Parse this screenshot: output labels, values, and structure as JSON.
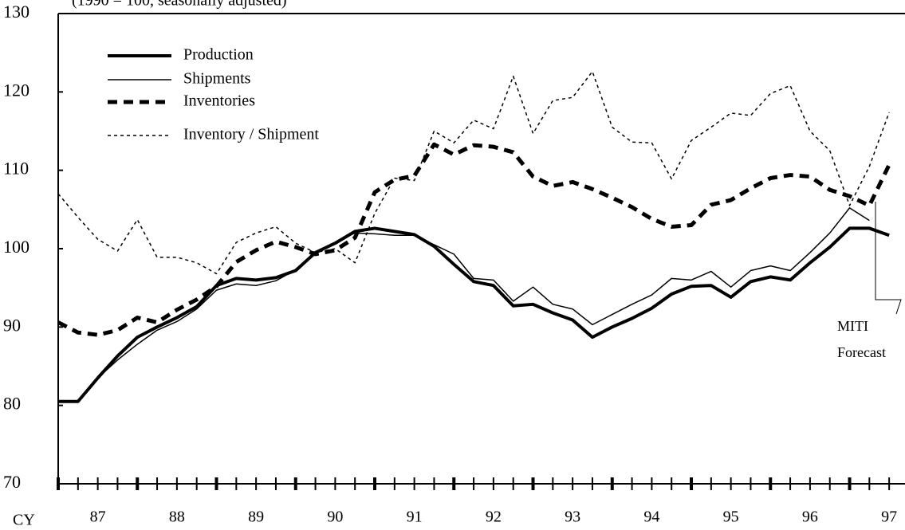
{
  "chart_data": {
    "type": "line",
    "subtitle": "(1990 = 100, seasonally adjusted)",
    "x": [
      87,
      87.25,
      87.5,
      87.75,
      88,
      88.25,
      88.5,
      88.75,
      89,
      89.25,
      89.5,
      89.75,
      90,
      90.25,
      90.5,
      90.75,
      91,
      91.25,
      91.5,
      91.75,
      92,
      92.25,
      92.5,
      92.75,
      93,
      93.25,
      93.5,
      93.75,
      94,
      94.25,
      94.5,
      94.75,
      95,
      95.25,
      95.5,
      95.75,
      96,
      96.25,
      96.5,
      96.75,
      97,
      97.25,
      97.5
    ],
    "series": [
      {
        "name": "Production",
        "color": "#000000",
        "style": "thick",
        "values": [
          80.5,
          80.5,
          83.5,
          86.3,
          88.7,
          90.0,
          91.2,
          92.6,
          95.3,
          96.2,
          96.0,
          96.3,
          97.2,
          99.5,
          100.7,
          102.2,
          102.6,
          102.2,
          101.8,
          100.3,
          98.0,
          95.8,
          95.3,
          92.7,
          92.9,
          91.8,
          90.9,
          88.7,
          90.0,
          91.1,
          92.4,
          94.2,
          95.2,
          95.3,
          93.8,
          95.8,
          96.4,
          96.0,
          98.2,
          100.2,
          102.6,
          102.6,
          101.7
        ]
      },
      {
        "name": "Shipments",
        "color": "#000000",
        "style": "thin",
        "values": [
          80.5,
          80.5,
          83.5,
          85.8,
          87.8,
          89.6,
          90.7,
          92.3,
          94.7,
          95.5,
          95.3,
          95.9,
          97.3,
          99.3,
          100.8,
          102.0,
          101.9,
          101.7,
          101.7,
          100.5,
          99.3,
          96.2,
          96.0,
          93.3,
          95.1,
          92.9,
          92.3,
          90.3,
          91.6,
          92.9,
          94.1,
          96.2,
          96.0,
          97.1,
          95.1,
          97.2,
          97.8,
          97.2,
          99.5,
          102.0,
          105.2,
          103.6,
          null
        ]
      },
      {
        "name": "Inventories",
        "color": "#000000",
        "style": "thickdash",
        "values": [
          90.6,
          89.3,
          89.0,
          89.6,
          91.2,
          90.6,
          92.2,
          93.5,
          95.2,
          98.3,
          99.8,
          100.9,
          100.2,
          99.3,
          99.8,
          101.4,
          107.2,
          108.8,
          109.3,
          113.3,
          112.0,
          113.2,
          113.0,
          112.3,
          109.2,
          108.0,
          108.5,
          107.6,
          106.5,
          105.3,
          103.8,
          102.8,
          103.0,
          105.6,
          106.2,
          107.7,
          109.0,
          109.4,
          109.2,
          107.5,
          106.7,
          105.5,
          110.7
        ]
      },
      {
        "name": "Inventory / Shipment",
        "color": "#000000",
        "style": "dot",
        "values": [
          107.0,
          104.0,
          101.2,
          99.7,
          103.7,
          98.9,
          98.9,
          98.2,
          96.8,
          100.8,
          102.0,
          102.8,
          100.7,
          99.5,
          100.0,
          98.2,
          104.5,
          109.0,
          108.7,
          115.0,
          113.5,
          116.4,
          115.3,
          122.0,
          114.7,
          118.9,
          119.3,
          122.6,
          115.5,
          113.6,
          113.5,
          108.9,
          113.8,
          115.5,
          117.3,
          117.0,
          119.8,
          120.8,
          115.0,
          112.5,
          105.5,
          110.5,
          117.4
        ]
      }
    ],
    "xlim": [
      87,
      97.7
    ],
    "xticks": [
      {
        "value": 87.5,
        "label": "87"
      },
      {
        "value": 88.5,
        "label": "88"
      },
      {
        "value": 89.5,
        "label": "89"
      },
      {
        "value": 90.5,
        "label": "90"
      },
      {
        "value": 91.5,
        "label": "91"
      },
      {
        "value": 92.5,
        "label": "92"
      },
      {
        "value": 93.5,
        "label": "93"
      },
      {
        "value": 94.5,
        "label": "94"
      },
      {
        "value": 95.5,
        "label": "95"
      },
      {
        "value": 96.5,
        "label": "96"
      },
      {
        "value": 97.5,
        "label": "97"
      }
    ],
    "x_axis_label": "CY",
    "ylim": [
      70,
      130
    ],
    "yticks": [
      70,
      80,
      90,
      100,
      110,
      120,
      130
    ],
    "annotations": [
      "MITI",
      "Forecast"
    ]
  }
}
